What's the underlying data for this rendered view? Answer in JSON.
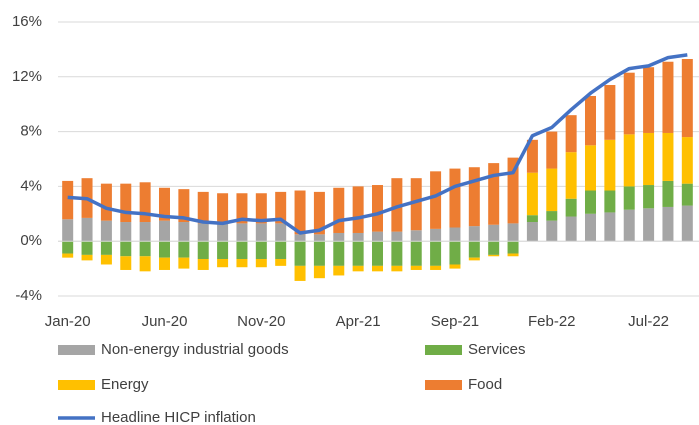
{
  "chart_data": {
    "type": "bar",
    "stacked": true,
    "categories": [
      "Jan-20",
      null,
      null,
      null,
      null,
      "Jun-20",
      null,
      null,
      null,
      null,
      "Nov-20",
      null,
      null,
      null,
      null,
      "Apr-21",
      null,
      null,
      null,
      null,
      "Sep-21",
      null,
      null,
      null,
      null,
      "Feb-22",
      null,
      null,
      null,
      null,
      "Jul-22",
      null,
      null
    ],
    "series": [
      {
        "name": "Non-energy industrial goods",
        "color": "#a5a5a5",
        "values": [
          1.6,
          1.7,
          1.5,
          1.4,
          1.4,
          1.5,
          1.4,
          1.3,
          1.3,
          1.3,
          1.3,
          1.3,
          0.5,
          0.5,
          0.6,
          0.6,
          0.7,
          0.7,
          0.8,
          0.9,
          1.0,
          1.1,
          1.2,
          1.3,
          1.4,
          1.5,
          1.8,
          2.0,
          2.1,
          2.3,
          2.4,
          2.5,
          2.6
        ]
      },
      {
        "name": "Services",
        "color": "#70ad47",
        "values": [
          -0.9,
          -1.0,
          -1.0,
          -1.1,
          -1.1,
          -1.2,
          -1.2,
          -1.3,
          -1.3,
          -1.3,
          -1.3,
          -1.3,
          -1.8,
          -1.8,
          -1.8,
          -1.8,
          -1.8,
          -1.8,
          -1.8,
          -1.8,
          -1.7,
          -1.2,
          -1.0,
          -0.9,
          0.5,
          0.7,
          1.3,
          1.7,
          1.6,
          1.7,
          1.7,
          1.9,
          1.6
        ]
      },
      {
        "name": "Energy",
        "color": "#ffc000",
        "values": [
          -0.3,
          -0.4,
          -0.7,
          -1.0,
          -1.1,
          -0.9,
          -0.8,
          -0.8,
          -0.6,
          -0.6,
          -0.6,
          -0.5,
          -1.1,
          -0.9,
          -0.7,
          -0.4,
          -0.4,
          -0.4,
          -0.3,
          -0.3,
          -0.3,
          -0.2,
          -0.1,
          -0.2,
          3.1,
          3.1,
          3.4,
          3.3,
          3.7,
          3.8,
          3.8,
          3.5,
          3.4
        ]
      },
      {
        "name": "Food",
        "color": "#ed7d31",
        "values": [
          2.8,
          2.9,
          2.7,
          2.8,
          2.9,
          2.4,
          2.4,
          2.3,
          2.2,
          2.2,
          2.2,
          2.3,
          3.2,
          3.1,
          3.3,
          3.4,
          3.4,
          3.9,
          3.8,
          4.2,
          4.3,
          4.3,
          4.5,
          4.8,
          2.4,
          2.7,
          2.7,
          3.6,
          4.0,
          4.5,
          4.8,
          5.2,
          5.7
        ]
      },
      {
        "name": "Headline HICP inflation",
        "type": "line",
        "color": "#4472c4",
        "values": [
          3.2,
          3.1,
          2.4,
          2.1,
          2.0,
          1.8,
          1.7,
          1.4,
          1.3,
          1.6,
          1.5,
          1.6,
          0.6,
          0.8,
          1.5,
          1.7,
          2.0,
          2.5,
          2.9,
          3.3,
          4.0,
          4.4,
          4.8,
          5.0,
          7.7,
          8.3,
          9.6,
          10.8,
          11.8,
          12.6,
          12.8,
          13.4,
          13.6
        ]
      }
    ],
    "ylim": [
      -4,
      16
    ],
    "yticks": [
      {
        "value": -4,
        "label": "-4%"
      },
      {
        "value": 0,
        "label": "0%"
      },
      {
        "value": 4,
        "label": "4%"
      },
      {
        "value": 8,
        "label": "8%"
      },
      {
        "value": 12,
        "label": "12%"
      },
      {
        "value": 16,
        "label": "16%"
      }
    ],
    "grid": true,
    "legend": "bottom"
  }
}
